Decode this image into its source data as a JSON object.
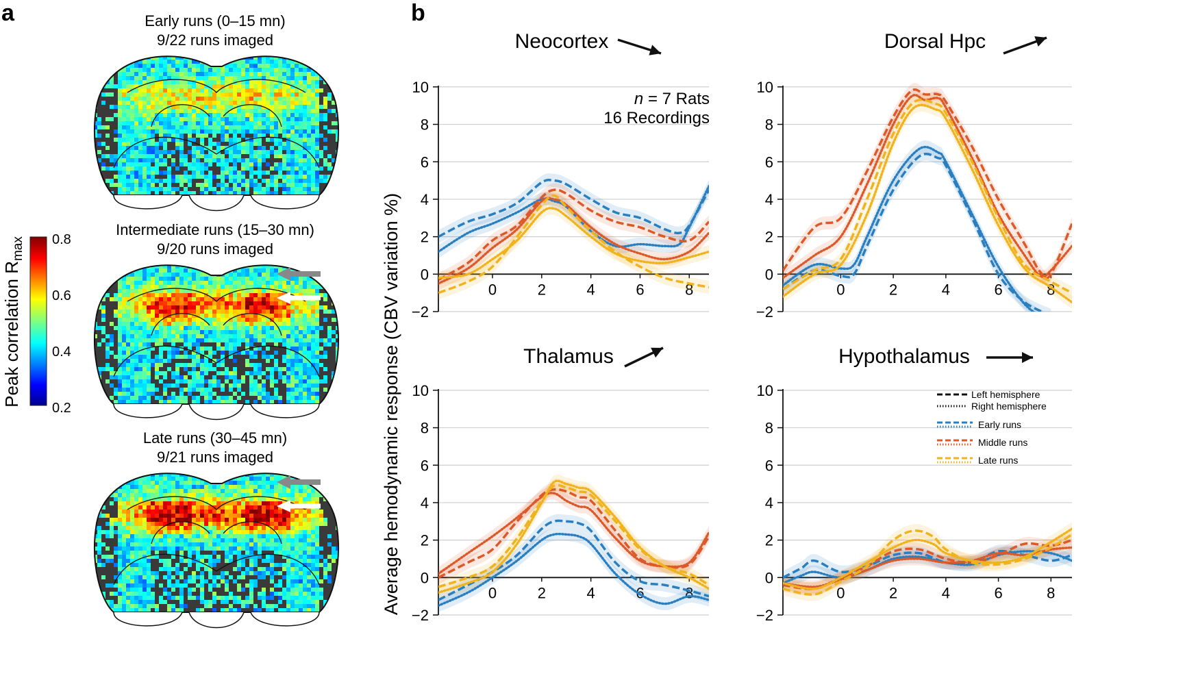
{
  "panel_a": {
    "letter": "a",
    "slices": [
      {
        "title_line1": "Early runs (0–15 mn)",
        "title_line2": "9/22 runs imaged",
        "intensity": 0.55,
        "arrows": false
      },
      {
        "title_line1": "Intermediate runs (15–30 mn)",
        "title_line2": "9/20 runs imaged",
        "intensity": 0.85,
        "arrows": true
      },
      {
        "title_line1": "Late runs (30–45 mn)",
        "title_line2": "9/21 runs imaged",
        "intensity": 1.0,
        "arrows": true
      }
    ],
    "colorbar": {
      "label": "Peak correlation R",
      "label_sub": "max",
      "ticks": [
        "0.8",
        "0.6",
        "0.4",
        "0.2"
      ],
      "range": [
        0.2,
        0.8
      ],
      "colormap": "jet"
    }
  },
  "panel_b": {
    "letter": "b",
    "ylabel": "Average hemodynamic response (CBV variation %)",
    "annotation_n": "n",
    "annotation_n_rest": " = 7 Rats",
    "annotation_line2": "16 Recordings",
    "legend": {
      "left": "Left hemisphere",
      "right": "Right hemisphere",
      "early": "Early runs",
      "middle": "Middle runs",
      "late": "Late runs"
    },
    "colors": {
      "early": "#2a7fc0",
      "middle": "#dc5a2a",
      "late": "#f0b31e"
    }
  },
  "chart_data": [
    {
      "type": "line",
      "title": "Neocortex",
      "trend_arrow": "down-right",
      "xlim": [
        -2.2,
        8.8
      ],
      "ylim": [
        -2,
        10.8
      ],
      "xticks": [
        "0",
        "2",
        "4",
        "6",
        "8"
      ],
      "yticks": [
        "−2",
        "0",
        "2",
        "4",
        "6",
        "8",
        "10"
      ],
      "series": [
        {
          "group": "early",
          "hemisphere": "left",
          "x": [
            -2.2,
            -1,
            0,
            1,
            2,
            2.5,
            3,
            4,
            5,
            6,
            7,
            7.6,
            8,
            8.8
          ],
          "y": [
            2.0,
            2.8,
            3.2,
            3.8,
            4.9,
            5.0,
            4.8,
            4.0,
            3.3,
            3.0,
            2.4,
            2.2,
            2.6,
            4.5
          ]
        },
        {
          "group": "early",
          "hemisphere": "right",
          "x": [
            -2.2,
            -1,
            0,
            1,
            2,
            2.5,
            3,
            4,
            5,
            6,
            7,
            7.6,
            8,
            8.8
          ],
          "y": [
            1.2,
            2.2,
            2.7,
            3.3,
            4.0,
            3.9,
            3.6,
            2.3,
            1.5,
            1.6,
            1.5,
            1.6,
            2.5,
            4.7
          ]
        },
        {
          "group": "middle",
          "hemisphere": "left",
          "x": [
            -2.2,
            -1,
            0,
            1,
            2,
            2.5,
            3,
            4,
            5,
            6,
            7,
            8,
            8.8
          ],
          "y": [
            -0.3,
            0.6,
            1.8,
            2.6,
            4.1,
            4.5,
            4.3,
            3.4,
            2.8,
            2.5,
            2.0,
            1.8,
            2.8
          ]
        },
        {
          "group": "middle",
          "hemisphere": "right",
          "x": [
            -2.2,
            -1,
            0,
            1,
            2,
            2.5,
            3,
            4,
            5,
            6,
            7,
            8,
            8.8
          ],
          "y": [
            -0.5,
            0.3,
            1.4,
            2.4,
            3.9,
            4.0,
            3.7,
            2.5,
            1.6,
            1.1,
            0.8,
            1.2,
            2.2
          ]
        },
        {
          "group": "late",
          "hemisphere": "left",
          "x": [
            -2.2,
            -1,
            0,
            1,
            2,
            2.5,
            3,
            4,
            5,
            6,
            7,
            8,
            8.8
          ],
          "y": [
            -1.0,
            -0.4,
            0.4,
            2.0,
            3.7,
            4.2,
            3.6,
            2.3,
            1.2,
            0.4,
            -0.2,
            -0.5,
            -0.7
          ]
        },
        {
          "group": "late",
          "hemisphere": "right",
          "x": [
            -2.2,
            -1,
            0,
            1,
            2,
            2.5,
            3,
            4,
            5,
            6,
            7,
            8,
            8.8
          ],
          "y": [
            -0.2,
            0.0,
            0.8,
            1.8,
            3.3,
            3.5,
            3.1,
            2.0,
            1.1,
            0.7,
            0.6,
            0.9,
            1.2
          ]
        }
      ]
    },
    {
      "type": "line",
      "title": "Dorsal Hpc",
      "trend_arrow": "up-right",
      "xlim": [
        -2.2,
        8.8
      ],
      "ylim": [
        -2,
        10.8
      ],
      "xticks": [
        "0",
        "2",
        "4",
        "6",
        "8"
      ],
      "yticks": [
        "−2",
        "0",
        "2",
        "4",
        "6",
        "8",
        "10"
      ],
      "series": [
        {
          "group": "early",
          "hemisphere": "left",
          "x": [
            -2.2,
            -1,
            0,
            0.5,
            1,
            2,
            3,
            3.7,
            4,
            5,
            6,
            7,
            8
          ],
          "y": [
            -0.8,
            0.2,
            -0.1,
            0.0,
            1.5,
            4.5,
            6.3,
            6.2,
            5.8,
            3.0,
            0.0,
            -1.5,
            -2.2
          ]
        },
        {
          "group": "early",
          "hemisphere": "right",
          "x": [
            -2.2,
            -1,
            0,
            0.5,
            1,
            2,
            3,
            3.7,
            4,
            5,
            6,
            7,
            7.8
          ],
          "y": [
            -0.6,
            0.5,
            0.3,
            0.5,
            2.0,
            5.0,
            6.7,
            6.5,
            6.0,
            3.2,
            0.4,
            -1.6,
            -2.4
          ]
        },
        {
          "group": "middle",
          "hemisphere": "left",
          "x": [
            -2.2,
            -1,
            0,
            1,
            2,
            2.7,
            3.2,
            3.7,
            4,
            5,
            6,
            7,
            7.6,
            8,
            8.8
          ],
          "y": [
            0.2,
            2.5,
            3.0,
            5.5,
            8.4,
            9.8,
            9.6,
            9.6,
            9.2,
            6.8,
            4.0,
            1.6,
            0.1,
            0.0,
            2.7
          ]
        },
        {
          "group": "middle",
          "hemisphere": "right",
          "x": [
            -2.2,
            -1,
            0,
            1,
            2,
            2.7,
            3.2,
            3.7,
            4,
            5,
            6,
            7,
            7.6,
            8,
            8.8
          ],
          "y": [
            -0.2,
            1.0,
            2.0,
            4.8,
            8.0,
            9.5,
            9.3,
            9.4,
            8.9,
            6.2,
            3.2,
            1.0,
            -0.1,
            0.2,
            1.5
          ]
        },
        {
          "group": "late",
          "hemisphere": "left",
          "x": [
            -2.2,
            -1,
            0,
            1,
            2,
            2.8,
            3.6,
            4,
            5,
            6,
            7,
            8,
            8.8
          ],
          "y": [
            -0.8,
            0.2,
            0.8,
            4.0,
            7.5,
            9.2,
            9.1,
            8.6,
            6.0,
            3.0,
            0.5,
            -0.4,
            -1.0
          ]
        },
        {
          "group": "late",
          "hemisphere": "right",
          "x": [
            -2.2,
            -1,
            0,
            1,
            2,
            2.8,
            3.6,
            4,
            5,
            6,
            7,
            8,
            8.8
          ],
          "y": [
            -1.2,
            0.0,
            0.5,
            3.2,
            7.0,
            8.9,
            8.8,
            8.3,
            5.6,
            2.6,
            0.3,
            -0.7,
            -1.5
          ]
        }
      ]
    },
    {
      "type": "line",
      "title": "Thalamus",
      "trend_arrow": "up-right",
      "xlim": [
        -2.2,
        8.8
      ],
      "ylim": [
        -2,
        10.8
      ],
      "xticks": [
        "0",
        "2",
        "4",
        "6",
        "8"
      ],
      "yticks": [
        "−2",
        "0",
        "2",
        "4",
        "6",
        "8",
        "10"
      ],
      "series": [
        {
          "group": "early",
          "hemisphere": "left",
          "x": [
            -2.2,
            -1,
            0,
            1,
            2,
            2.5,
            3,
            3.5,
            4,
            5,
            6,
            7,
            8,
            8.8
          ],
          "y": [
            -1.2,
            -0.4,
            0.3,
            1.2,
            2.6,
            3.0,
            3.0,
            2.9,
            2.5,
            0.8,
            -0.2,
            -0.4,
            -0.7,
            -1.0
          ]
        },
        {
          "group": "early",
          "hemisphere": "right",
          "x": [
            -2.2,
            -1,
            0,
            1,
            2,
            2.5,
            3,
            3.5,
            4,
            5,
            6,
            7,
            8,
            8.8
          ],
          "y": [
            -1.5,
            -0.8,
            0.0,
            0.9,
            2.0,
            2.3,
            2.3,
            2.2,
            1.8,
            0.2,
            -0.9,
            -1.4,
            -1.0,
            -1.2
          ]
        },
        {
          "group": "middle",
          "hemisphere": "left",
          "x": [
            -2.2,
            -1,
            0,
            1,
            2,
            2.5,
            3,
            3.5,
            4,
            5,
            6,
            7,
            8,
            8.8
          ],
          "y": [
            0.0,
            0.8,
            1.5,
            3.0,
            4.4,
            4.7,
            4.6,
            4.3,
            4.1,
            2.5,
            1.0,
            0.6,
            0.7,
            2.2
          ]
        },
        {
          "group": "middle",
          "hemisphere": "right",
          "x": [
            -2.2,
            -1,
            0,
            1,
            2,
            2.5,
            3,
            3.5,
            4,
            5,
            6,
            7,
            8,
            8.8
          ],
          "y": [
            0.2,
            1.3,
            2.2,
            3.2,
            4.3,
            4.5,
            4.1,
            3.8,
            3.6,
            2.1,
            0.9,
            0.6,
            0.8,
            2.4
          ]
        },
        {
          "group": "late",
          "hemisphere": "left",
          "x": [
            -2.2,
            -1,
            0,
            1,
            2,
            2.5,
            3,
            3.5,
            4,
            5,
            6,
            7,
            8,
            8.8
          ],
          "y": [
            -0.5,
            0.0,
            0.6,
            2.1,
            4.1,
            4.9,
            4.8,
            4.6,
            4.4,
            3.0,
            1.5,
            0.6,
            0.2,
            -0.4
          ]
        },
        {
          "group": "late",
          "hemisphere": "right",
          "x": [
            -2.2,
            -1,
            0,
            1,
            2,
            2.5,
            3,
            3.5,
            4,
            5,
            6,
            7,
            8,
            8.8
          ],
          "y": [
            -0.8,
            -0.3,
            0.3,
            1.8,
            4.0,
            5.1,
            5.0,
            4.8,
            4.6,
            3.2,
            1.6,
            0.6,
            0.0,
            -0.6
          ]
        }
      ]
    },
    {
      "type": "line",
      "title": "Hypothalamus",
      "trend_arrow": "right",
      "xlim": [
        -2.2,
        8.8
      ],
      "ylim": [
        -2,
        10.8
      ],
      "xticks": [
        "0",
        "2",
        "4",
        "6",
        "8"
      ],
      "yticks": [
        "−2",
        "0",
        "2",
        "4",
        "6",
        "8",
        "10"
      ],
      "series": [
        {
          "group": "early",
          "hemisphere": "left",
          "x": [
            -2.2,
            -1.5,
            -1,
            0,
            1,
            2,
            3,
            4,
            5,
            6,
            7,
            8,
            8.8
          ],
          "y": [
            0.0,
            0.5,
            0.9,
            0.3,
            0.6,
            1.2,
            1.3,
            0.8,
            0.8,
            1.4,
            1.2,
            0.9,
            1.2
          ]
        },
        {
          "group": "early",
          "hemisphere": "right",
          "x": [
            -2.2,
            -1.5,
            -1,
            0,
            1,
            2,
            3,
            4,
            5,
            6,
            7,
            8,
            8.8
          ],
          "y": [
            -0.3,
            0.1,
            0.3,
            0.0,
            0.4,
            1.0,
            1.1,
            0.8,
            0.7,
            1.2,
            1.4,
            1.3,
            0.9
          ]
        },
        {
          "group": "middle",
          "hemisphere": "left",
          "x": [
            -2.2,
            -1,
            0,
            1,
            2,
            3,
            4,
            5,
            6,
            7,
            8,
            8.8
          ],
          "y": [
            -0.4,
            -0.6,
            0.0,
            0.6,
            1.4,
            1.5,
            1.0,
            0.8,
            1.2,
            1.8,
            1.7,
            2.0
          ]
        },
        {
          "group": "middle",
          "hemisphere": "right",
          "x": [
            -2.2,
            -1,
            0,
            1,
            2,
            3,
            4,
            5,
            6,
            7,
            8,
            8.8
          ],
          "y": [
            -0.3,
            -0.5,
            -0.1,
            0.4,
            0.9,
            1.0,
            0.8,
            0.9,
            1.3,
            1.2,
            1.5,
            1.6
          ]
        },
        {
          "group": "late",
          "hemisphere": "left",
          "x": [
            -2.2,
            -1,
            0,
            1,
            2,
            2.8,
            3.5,
            4,
            5,
            6,
            7,
            8,
            8.8
          ],
          "y": [
            -0.6,
            -0.9,
            -0.2,
            0.6,
            2.0,
            2.5,
            2.2,
            1.5,
            0.8,
            0.7,
            1.0,
            1.6,
            2.3
          ]
        },
        {
          "group": "late",
          "hemisphere": "right",
          "x": [
            -2.2,
            -1,
            0,
            1,
            2,
            2.8,
            3.5,
            4,
            5,
            6,
            7,
            8,
            8.8
          ],
          "y": [
            -0.3,
            -0.6,
            0.0,
            0.8,
            1.6,
            2.0,
            1.8,
            1.3,
            0.9,
            0.8,
            1.1,
            1.9,
            2.6
          ]
        }
      ]
    }
  ]
}
